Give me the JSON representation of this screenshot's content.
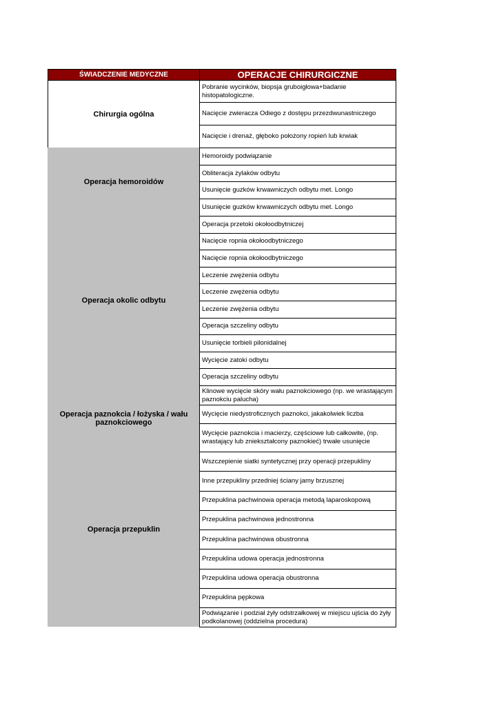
{
  "table": {
    "header": [
      "ŚWIADCZENIE MEDYCZNE",
      "OPERACJE CHIRURGICZNE"
    ],
    "groups": [
      {
        "name": "Chirurgia ogólna",
        "procedures": [
          "Pobranie wycinków, biopsja gruboigłowa+badanie histopatologiczne.",
          "Nacięcie zwieracza Odiego z dostępu przezdwunastniczego",
          "Nacięcie i drenaż, głęboko położony ropień lub krwiak"
        ]
      },
      {
        "name": "Operacja hemoroidów",
        "procedures": [
          "Hemoroidy podwiązanie",
          "Obliteracja żylaków odbytu",
          "Usunięcie guzków krwawniczych odbytu met. Longo",
          "Usunięcie guzków krwawniczych odbytu met. Longo"
        ]
      },
      {
        "name": "Operacja okolic odbytu",
        "procedures": [
          "Operacja przetoki okołoodbytniczej",
          "Nacięcie ropnia okołoodbytniczego",
          "Nacięcie ropnia okołoodbytniczego",
          "Leczenie zwężenia odbytu",
          "Leczenie zwężenia odbytu",
          "Leczenie zwężenia odbytu",
          "Operacja szczeliny odbytu",
          "Usunięcie torbieli pilonidalnej",
          "Wycięcie zatoki odbytu",
          "Operacja szczeliny odbytu"
        ]
      },
      {
        "name": "Operacja paznokcia / łożyska / wału paznokciowego",
        "procedures": [
          "Klinowe wycięcie skóry wału paznokciowego (np. we wrastającym paznokciu palucha)",
          "Wycięcie niedystroficznych paznokci, jakakolwiek liczba",
          "Wycięcie paznokcia i macierzy, częściowe lub całkowite, (np. wrastający lub zniekształcony paznokieć)  trwałe usunięcie"
        ]
      },
      {
        "name": "Operacja przepuklin",
        "procedures": [
          "Wszczepienie siatki syntetycznej przy operacji przepukliny",
          "Inne przepukliny przedniej ściany jamy brzusznej",
          "Przepuklina pachwinowa operacja metodą laparoskopową",
          "Przepuklina pachwinowa jednostronna",
          "Przepuklina pachwinowa obustronna",
          "Przepuklina udowa operacja jednostronna",
          "Przepuklina udowa operacja obustronna",
          "Przepuklina pępkowa"
        ]
      },
      {
        "procedures": [
          "Podwiązanie i podział żyły odstrzałkowej w miejscu ujścia do żyły podkolanowej (oddzielna procedura)"
        ]
      }
    ]
  }
}
